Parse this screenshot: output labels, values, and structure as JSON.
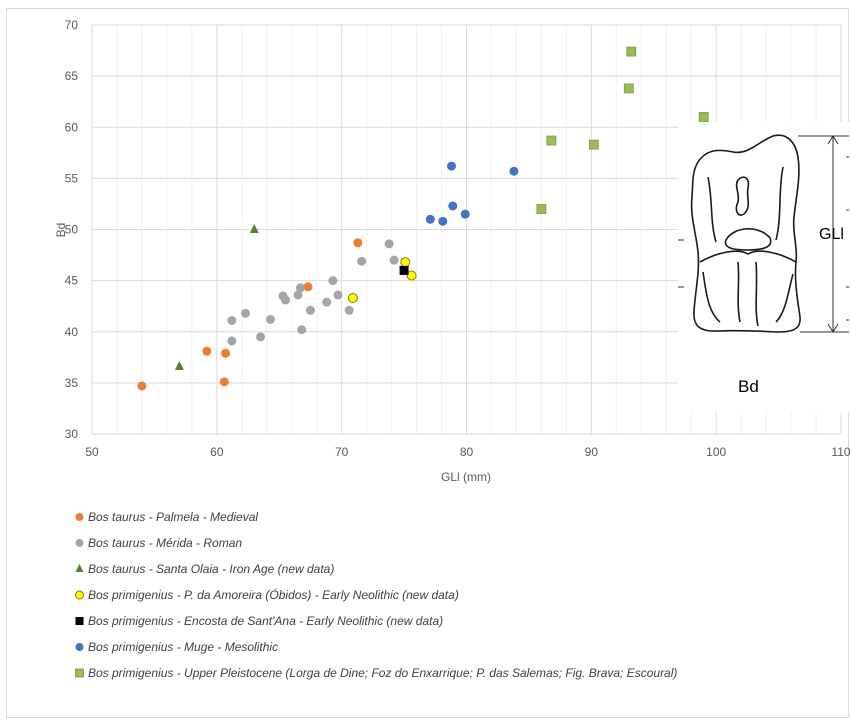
{
  "chart_data": {
    "type": "scatter",
    "title": "",
    "xlabel": "GLl (mm)",
    "ylabel": "Bd",
    "xlim": [
      50,
      110
    ],
    "ylim": [
      30,
      70
    ],
    "x_ticks": [
      "50",
      "60",
      "70",
      "80",
      "90",
      "100",
      "110"
    ],
    "y_ticks": [
      "30",
      "35",
      "40",
      "45",
      "50",
      "55",
      "60",
      "65",
      "70"
    ],
    "grid": true,
    "legend_position": "bottom",
    "series": [
      {
        "name": "Bos taurus - Palmela - Medieval",
        "marker": "circle",
        "color": "#ed7d31",
        "points": [
          [
            54.0,
            34.7
          ],
          [
            59.2,
            38.1
          ],
          [
            60.6,
            35.1
          ],
          [
            60.7,
            37.9
          ],
          [
            67.3,
            44.4
          ],
          [
            71.3,
            48.7
          ]
        ]
      },
      {
        "name": "Bos taurus - Mérida - Roman",
        "marker": "circle",
        "color": "#a5a5a5",
        "points": [
          [
            61.2,
            39.1
          ],
          [
            61.2,
            41.1
          ],
          [
            62.3,
            41.8
          ],
          [
            63.5,
            39.5
          ],
          [
            64.3,
            41.2
          ],
          [
            65.3,
            43.5
          ],
          [
            65.5,
            43.1
          ],
          [
            66.5,
            43.6
          ],
          [
            66.7,
            44.3
          ],
          [
            66.8,
            40.2
          ],
          [
            67.5,
            42.1
          ],
          [
            68.8,
            42.9
          ],
          [
            69.3,
            45.0
          ],
          [
            69.7,
            43.6
          ],
          [
            70.6,
            42.1
          ],
          [
            71.6,
            46.9
          ],
          [
            73.8,
            48.6
          ],
          [
            74.2,
            47.0
          ]
        ]
      },
      {
        "name": "Bos taurus - Santa Olaia - Iron Age (new data)",
        "marker": "triangle",
        "color": "#548235",
        "points": [
          [
            57.0,
            36.6
          ],
          [
            63.0,
            50.0
          ]
        ]
      },
      {
        "name": "Bos primigenius - P. da Amoreira (Óbidos) - Early Neolithic (new data)",
        "marker": "circle-outline",
        "color": "#ffff00",
        "stroke": "#7f7f00",
        "points": [
          [
            70.9,
            43.3
          ],
          [
            75.1,
            46.8
          ],
          [
            75.6,
            45.5
          ]
        ]
      },
      {
        "name": "Bos primigenius - Encosta de Sant'Ana - Early Neolithic (new data)",
        "marker": "square",
        "color": "#000000",
        "points": [
          [
            75.0,
            46.0
          ]
        ]
      },
      {
        "name": "Bos primigenius - Muge - Mesolithic",
        "marker": "circle",
        "color": "#4472c4",
        "points": [
          [
            77.1,
            51.0
          ],
          [
            78.1,
            50.8
          ],
          [
            78.8,
            56.2
          ],
          [
            78.9,
            52.3
          ],
          [
            79.9,
            51.5
          ],
          [
            83.8,
            55.7
          ]
        ]
      },
      {
        "name": "Bos primigenius - Upper Pleistocene (Lorga de Dine; Foz do Enxarrique; P. das Salemas; Fig. Brava; Escoural)",
        "marker": "square",
        "color": "#9bbb59",
        "points": [
          [
            86.0,
            52.0
          ],
          [
            86.8,
            58.7
          ],
          [
            90.2,
            58.3
          ],
          [
            93.0,
            63.8
          ],
          [
            93.2,
            67.4
          ],
          [
            99.0,
            61.0
          ]
        ]
      }
    ]
  },
  "inset": {
    "gli_label": "GLl",
    "bd_label": "Bd"
  }
}
